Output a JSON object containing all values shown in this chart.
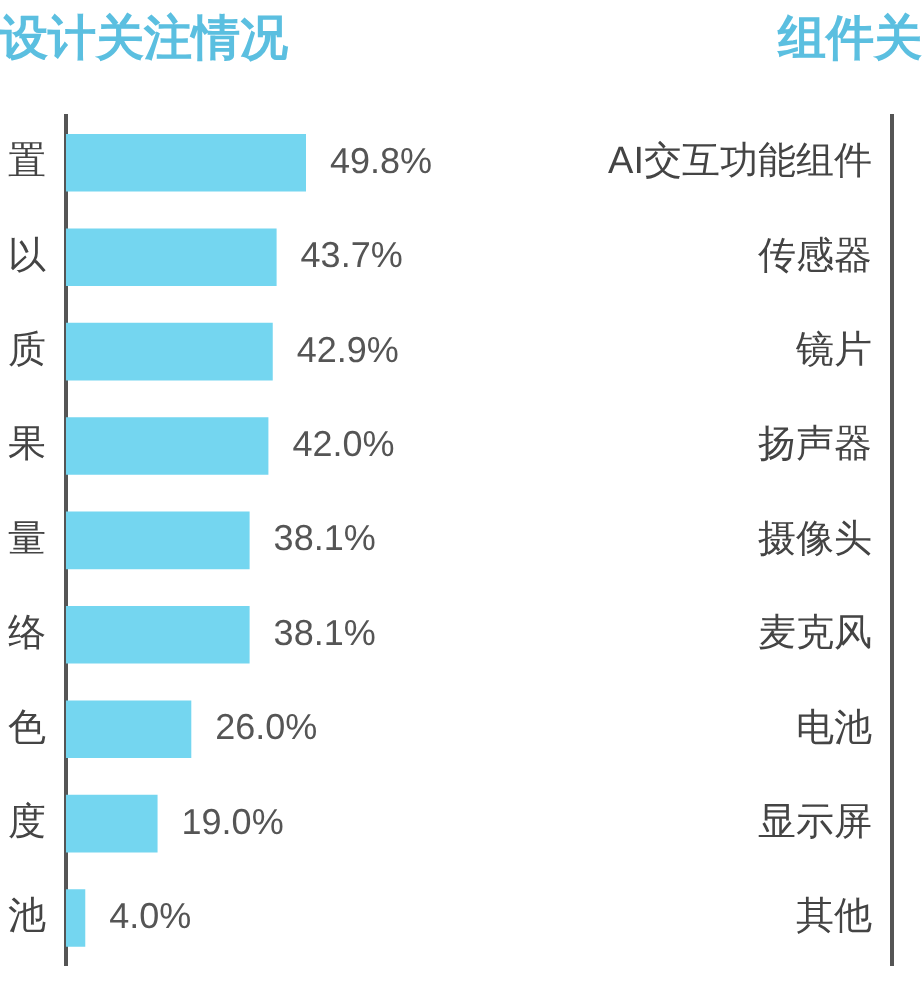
{
  "chart_data": [
    {
      "type": "bar",
      "title": "设计关注情况",
      "orientation": "horizontal",
      "categories": [
        "置",
        "以",
        "质",
        "果",
        "量",
        "络",
        "色",
        "度",
        "池"
      ],
      "values": [
        49.8,
        43.7,
        42.9,
        42.0,
        38.1,
        38.1,
        26.0,
        19.0,
        4.0
      ],
      "color": "#74d6f0",
      "value_labels": [
        "49.8%",
        "43.7%",
        "42.9%",
        "42.0%",
        "38.1%",
        "38.1%",
        "26.0%",
        "19.0%",
        "4.0%"
      ],
      "tick_labels": "y"
    },
    {
      "type": "other",
      "title": "组件关",
      "categories": [
        "AI交互功能组件",
        "传感器",
        "镜片",
        "扬声器",
        "摄像头",
        "麦克风",
        "电池",
        "显示屏",
        "其他"
      ]
    }
  ]
}
